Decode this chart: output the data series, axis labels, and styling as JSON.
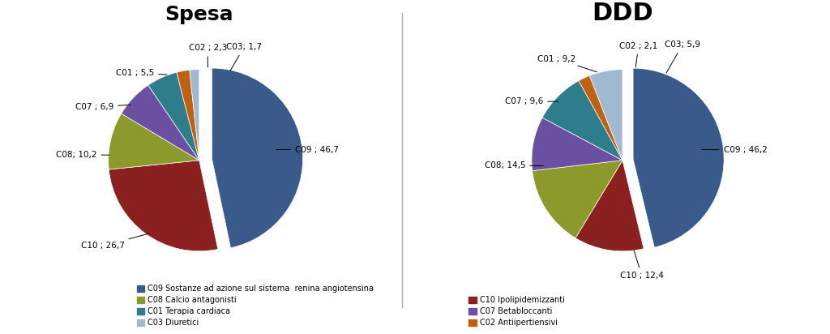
{
  "spesa_labels": [
    "C09",
    "C10",
    "C08",
    "C07",
    "C01",
    "C02",
    "C03"
  ],
  "spesa_values": [
    46.7,
    26.7,
    10.2,
    6.9,
    5.5,
    2.3,
    1.7
  ],
  "spesa_colors": [
    "#3A5A8C",
    "#8B2020",
    "#8B9A2A",
    "#6B4FA0",
    "#2E7D8C",
    "#C06010",
    "#A0B8D0"
  ],
  "spesa_explode": [
    0.12,
    0.0,
    0.0,
    0.0,
    0.0,
    0.0,
    0.0
  ],
  "ddd_labels": [
    "C09",
    "C10",
    "C08",
    "C07",
    "C01",
    "C02",
    "C03"
  ],
  "ddd_values": [
    46.2,
    12.4,
    14.5,
    9.6,
    9.2,
    2.1,
    5.9
  ],
  "ddd_colors": [
    "#3A5A8C",
    "#8B2020",
    "#8B9A2A",
    "#6B4FA0",
    "#2E7D8C",
    "#C06010",
    "#A0B8D0"
  ],
  "ddd_explode": [
    0.1,
    0.0,
    0.0,
    0.0,
    0.0,
    0.0,
    0.0
  ],
  "title_spesa": "Spesa",
  "title_ddd": "DDD",
  "legend_left": [
    {
      "label": "C09 Sostanze ad azione sul sistema  renina angiotensina",
      "color": "#3A5A8C"
    },
    {
      "label": "C08 Calcio antagonisti",
      "color": "#8B9A2A"
    },
    {
      "label": "C01 Terapia cardiaca",
      "color": "#2E7D8C"
    },
    {
      "label": "C03 Diuretici",
      "color": "#A0B8D0"
    }
  ],
  "legend_right": [
    {
      "label": "C10 Ipolipidemizzanti",
      "color": "#8B2020"
    },
    {
      "label": "C07 Betabloccanti",
      "color": "#6B4FA0"
    },
    {
      "label": "C02 Antiipertiensivi",
      "color": "#C06010"
    }
  ],
  "bg_color": "#FFFFFF",
  "label_fontsize": 7.5,
  "title_fontsize_spesa": 18,
  "title_fontsize_ddd": 22
}
